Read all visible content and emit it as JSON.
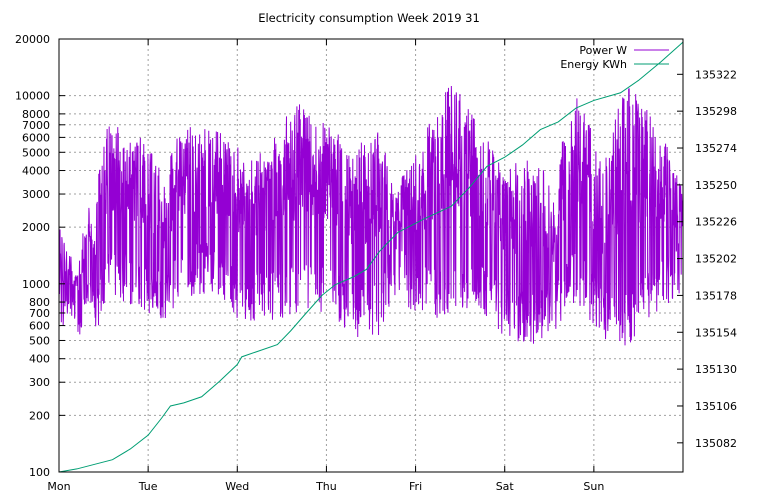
{
  "chart_data": {
    "type": "line",
    "title": "Electricity consumption Week 2019 31",
    "xlabel": "",
    "ylabel": "",
    "y2label": "",
    "grid": true,
    "legend_position": "top-right",
    "x_tick_labels": [
      "Mon",
      "Tue",
      "Wed",
      "Thu",
      "Fri",
      "Sat",
      "Sun"
    ],
    "x_range_days": [
      0,
      7
    ],
    "y_scale": "log",
    "y_range": [
      100,
      20000
    ],
    "y_ticks": [
      100,
      200,
      300,
      400,
      500,
      600,
      700,
      800,
      1000,
      2000,
      3000,
      4000,
      5000,
      6000,
      7000,
      8000,
      10000,
      20000
    ],
    "y2_range": [
      135063,
      135345
    ],
    "y2_ticks": [
      135082,
      135106,
      135130,
      135154,
      135178,
      135202,
      135226,
      135250,
      135274,
      135298,
      135322
    ],
    "series": [
      {
        "name": "Power W",
        "color": "#9400d3",
        "axis": "y",
        "seed": 7,
        "envelope": [
          [
            0.0,
            600,
            2000,
            0.35
          ],
          [
            0.2,
            530,
            1100,
            0.3
          ],
          [
            0.45,
            550,
            3900,
            0.35
          ],
          [
            0.55,
            900,
            7000,
            0.4
          ],
          [
            0.9,
            700,
            6500,
            0.45
          ],
          [
            1.2,
            580,
            3500,
            0.4
          ],
          [
            1.35,
            800,
            7000,
            0.45
          ],
          [
            1.7,
            900,
            7000,
            0.5
          ],
          [
            2.0,
            650,
            5300,
            0.5
          ],
          [
            2.3,
            620,
            5300,
            0.5
          ],
          [
            2.7,
            650,
            9200,
            0.6
          ],
          [
            3.0,
            700,
            7000,
            0.55
          ],
          [
            3.3,
            500,
            5300,
            0.55
          ],
          [
            3.6,
            520,
            6500,
            0.5
          ],
          [
            3.75,
            850,
            3000,
            0.4
          ],
          [
            4.05,
            650,
            5300,
            0.45
          ],
          [
            4.4,
            620,
            12000,
            0.55
          ],
          [
            4.75,
            700,
            7000,
            0.45
          ],
          [
            5.0,
            500,
            4000,
            0.4
          ],
          [
            5.3,
            470,
            5300,
            0.45
          ],
          [
            5.55,
            520,
            3000,
            0.4
          ],
          [
            5.8,
            800,
            10000,
            0.5
          ],
          [
            6.1,
            480,
            4000,
            0.45
          ],
          [
            6.4,
            460,
            12000,
            0.55
          ],
          [
            6.7,
            700,
            7000,
            0.55
          ],
          [
            7.0,
            900,
            3000,
            0.4
          ]
        ]
      },
      {
        "name": "Energy KWh",
        "color": "#009e73",
        "axis": "y2",
        "points": [
          [
            0.0,
            135063
          ],
          [
            0.2,
            135065
          ],
          [
            0.4,
            135068
          ],
          [
            0.6,
            135071
          ],
          [
            0.8,
            135078
          ],
          [
            1.0,
            135087
          ],
          [
            1.15,
            135098
          ],
          [
            1.25,
            135106
          ],
          [
            1.4,
            135108
          ],
          [
            1.6,
            135112
          ],
          [
            1.8,
            135122
          ],
          [
            2.0,
            135133
          ],
          [
            2.05,
            135138
          ],
          [
            2.2,
            135141
          ],
          [
            2.45,
            135146
          ],
          [
            2.6,
            135155
          ],
          [
            2.75,
            135165
          ],
          [
            2.95,
            135178
          ],
          [
            3.1,
            135185
          ],
          [
            3.3,
            135190
          ],
          [
            3.45,
            135195
          ],
          [
            3.6,
            135207
          ],
          [
            3.8,
            135219
          ],
          [
            4.1,
            135228
          ],
          [
            4.4,
            135236
          ],
          [
            4.6,
            135248
          ],
          [
            4.8,
            135262
          ],
          [
            5.0,
            135268
          ],
          [
            5.2,
            135276
          ],
          [
            5.4,
            135286
          ],
          [
            5.6,
            135291
          ],
          [
            5.8,
            135300
          ],
          [
            6.0,
            135305
          ],
          [
            6.3,
            135310
          ],
          [
            6.5,
            135318
          ],
          [
            6.75,
            135330
          ],
          [
            7.0,
            135343
          ]
        ]
      }
    ]
  }
}
